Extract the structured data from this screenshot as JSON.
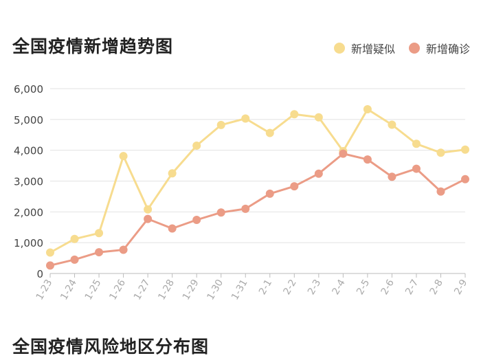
{
  "chart_data": {
    "type": "line",
    "title": "全国疫情新增趋势图",
    "xlabel": "",
    "ylabel": "",
    "ylim": [
      0,
      6000
    ],
    "yticks": [
      0,
      1000,
      2000,
      3000,
      4000,
      5000,
      6000
    ],
    "ytick_labels": [
      "0",
      "1,000",
      "2,000",
      "3,000",
      "4,000",
      "5,000",
      "6,000"
    ],
    "grid": true,
    "legend_position": "top-right",
    "categories": [
      "1-23",
      "1-24",
      "1-25",
      "1-26",
      "1-27",
      "1-28",
      "1-29",
      "1-30",
      "1-31",
      "2-1",
      "2-2",
      "2-3",
      "2-4",
      "2-5",
      "2-6",
      "2-7",
      "2-8",
      "2-9"
    ],
    "series": [
      {
        "name": "新增疑似",
        "color": "#f7dc8f",
        "values": [
          680,
          1120,
          1310,
          3810,
          2080,
          3250,
          4150,
          4820,
          5030,
          4560,
          5170,
          5070,
          3970,
          5330,
          4830,
          4210,
          3920,
          4020
        ]
      },
      {
        "name": "新增确诊",
        "color": "#eb9c86",
        "values": [
          260,
          450,
          690,
          770,
          1770,
          1460,
          1740,
          1980,
          2100,
          2590,
          2830,
          3240,
          3890,
          3700,
          3140,
          3400,
          2660,
          3060
        ]
      }
    ]
  },
  "next_section": {
    "title": "全国疫情风险地区分布图"
  }
}
